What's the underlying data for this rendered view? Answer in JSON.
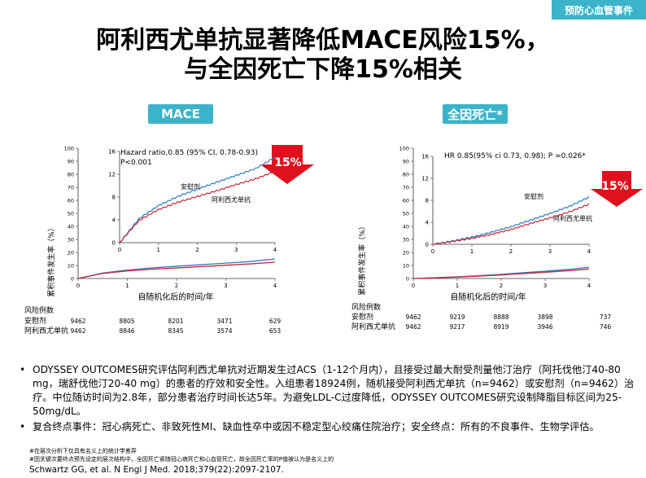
{
  "tag": "预防心血管事件",
  "title": {
    "line1": "阿利西尤单抗显著降低MACE风险15%，",
    "line2": "与全因死亡下降15%相关"
  },
  "panels": [
    {
      "pill": "MACE",
      "inset_annotation": [
        "Hazard ratio,0.85 (95% CI, 0.78-0.93)",
        "P<0.001"
      ],
      "ylabel": "累积事件发生率（%）",
      "xlabel": "自随机化后的时间/年",
      "reduction_label": "15%",
      "series_labels": {
        "placebo": "安慰剂",
        "drug": "阿利西尤单抗"
      },
      "risk_table": {
        "header": "风险例数",
        "rows": [
          {
            "label": "安慰剂",
            "values": [
              "9462",
              "8805",
              "8201",
              "3471",
              "629"
            ]
          },
          {
            "label": "阿利西尤单抗",
            "values": [
              "9462",
              "8846",
              "8345",
              "3574",
              "653"
            ]
          }
        ]
      }
    },
    {
      "pill": "全因死亡*",
      "inset_annotation": [
        "HR 0.85(95% ci 0.73, 0.98); P =0.026*"
      ],
      "ylabel": "累积事件发生率（%）",
      "xlabel": "自随机化后的时间/年",
      "reduction_label": "15%",
      "series_labels": {
        "placebo": "安慰剂",
        "drug": "阿利西尤单抗"
      },
      "risk_table": {
        "header": "风险例数",
        "rows": [
          {
            "label": "安慰剂",
            "values": [
              "9462",
              "9219",
              "8888",
              "3898",
              "737"
            ]
          },
          {
            "label": "阿利西尤单抗",
            "values": [
              "9462",
              "9217",
              "8919",
              "3946",
              "746"
            ]
          }
        ]
      }
    }
  ],
  "chart_data": [
    {
      "type": "line",
      "x": [
        0,
        0.5,
        1,
        1.5,
        2,
        2.5,
        3,
        3.5,
        4
      ],
      "ylim": [
        0,
        100
      ],
      "xlim": [
        0,
        4
      ],
      "yticks": [
        0,
        10,
        20,
        30,
        40,
        50,
        60,
        70,
        80,
        90,
        100
      ],
      "xticks": [
        0,
        1,
        2,
        3,
        4
      ],
      "series": [
        {
          "name": "安慰剂",
          "color": "#2f7bbf",
          "values": [
            0,
            4.2,
            6.5,
            8.1,
            9.4,
            10.6,
            11.8,
            13.0,
            15.0
          ]
        },
        {
          "name": "阿利西尤单抗",
          "color": "#c8283b",
          "values": [
            0,
            3.9,
            5.8,
            7.1,
            8.1,
            9.1,
            10.2,
            11.2,
            12.5
          ]
        }
      ],
      "inset": {
        "ylim": [
          0,
          16
        ],
        "xlim": [
          0,
          4
        ],
        "yticks": [
          0,
          4,
          8,
          12,
          16
        ],
        "xticks": [
          0,
          1,
          2,
          3,
          4
        ]
      }
    },
    {
      "type": "line",
      "x": [
        0,
        0.5,
        1,
        1.5,
        2,
        2.5,
        3,
        3.5,
        4
      ],
      "ylim": [
        0,
        100
      ],
      "xlim": [
        0,
        4
      ],
      "yticks": [
        0,
        10,
        20,
        30,
        40,
        50,
        60,
        70,
        80,
        90,
        100
      ],
      "xticks": [
        0,
        1,
        2,
        3,
        4
      ],
      "series": [
        {
          "name": "安慰剂",
          "color": "#2f7bbf",
          "values": [
            0,
            0.6,
            1.3,
            2.2,
            3.2,
            4.4,
            5.6,
            6.9,
            8.6
          ]
        },
        {
          "name": "阿利西尤单抗",
          "color": "#c8283b",
          "values": [
            0,
            0.5,
            1.1,
            1.8,
            2.7,
            3.8,
            4.8,
            5.9,
            7.3
          ]
        }
      ],
      "inset": {
        "ylim": [
          0,
          16
        ],
        "xlim": [
          0,
          4
        ],
        "yticks": [
          0,
          4,
          8,
          12,
          16
        ],
        "xticks": [
          0,
          1,
          2,
          3,
          4
        ]
      }
    }
  ],
  "bullets": [
    "ODYSSEY OUTCOMES研究评估阿利西尤单抗对近期发生过ACS（1-12个月内），且接受过最大耐受剂量他汀治疗（阿托伐他汀40-80 mg，瑞舒伐他汀20-40 mg）的患者的疗效和安全性。入组患者18924例，随机接受阿利西尤单抗（n=9462）或安慰剂（n=9462）治疗。中位随访时间为2.8年，部分患者治疗时间长达5年。为避免LDL-C过度降低，ODYSSEY OUTCOMES研究设制降脂目标区间为25-50mg/dL。",
    "复合终点事件：冠心病死亡、非致死性MI、缺血性卒中或因不稳定型心绞痛住院治疗；安全终点：所有的不良事件、生物学评估。"
  ],
  "footnotes": [
    "#在层次分析下仅具有名义上的统计学差异",
    "#因关键次要终点预先设定的层次结构中，全因死亡紧随冠心病死亡和心血管死亡，故全因死亡率的P值被认为是名义上的"
  ],
  "citation": "Schwartz GG, et al. N Engl J Med. 2018;379(22):2097-2107."
}
